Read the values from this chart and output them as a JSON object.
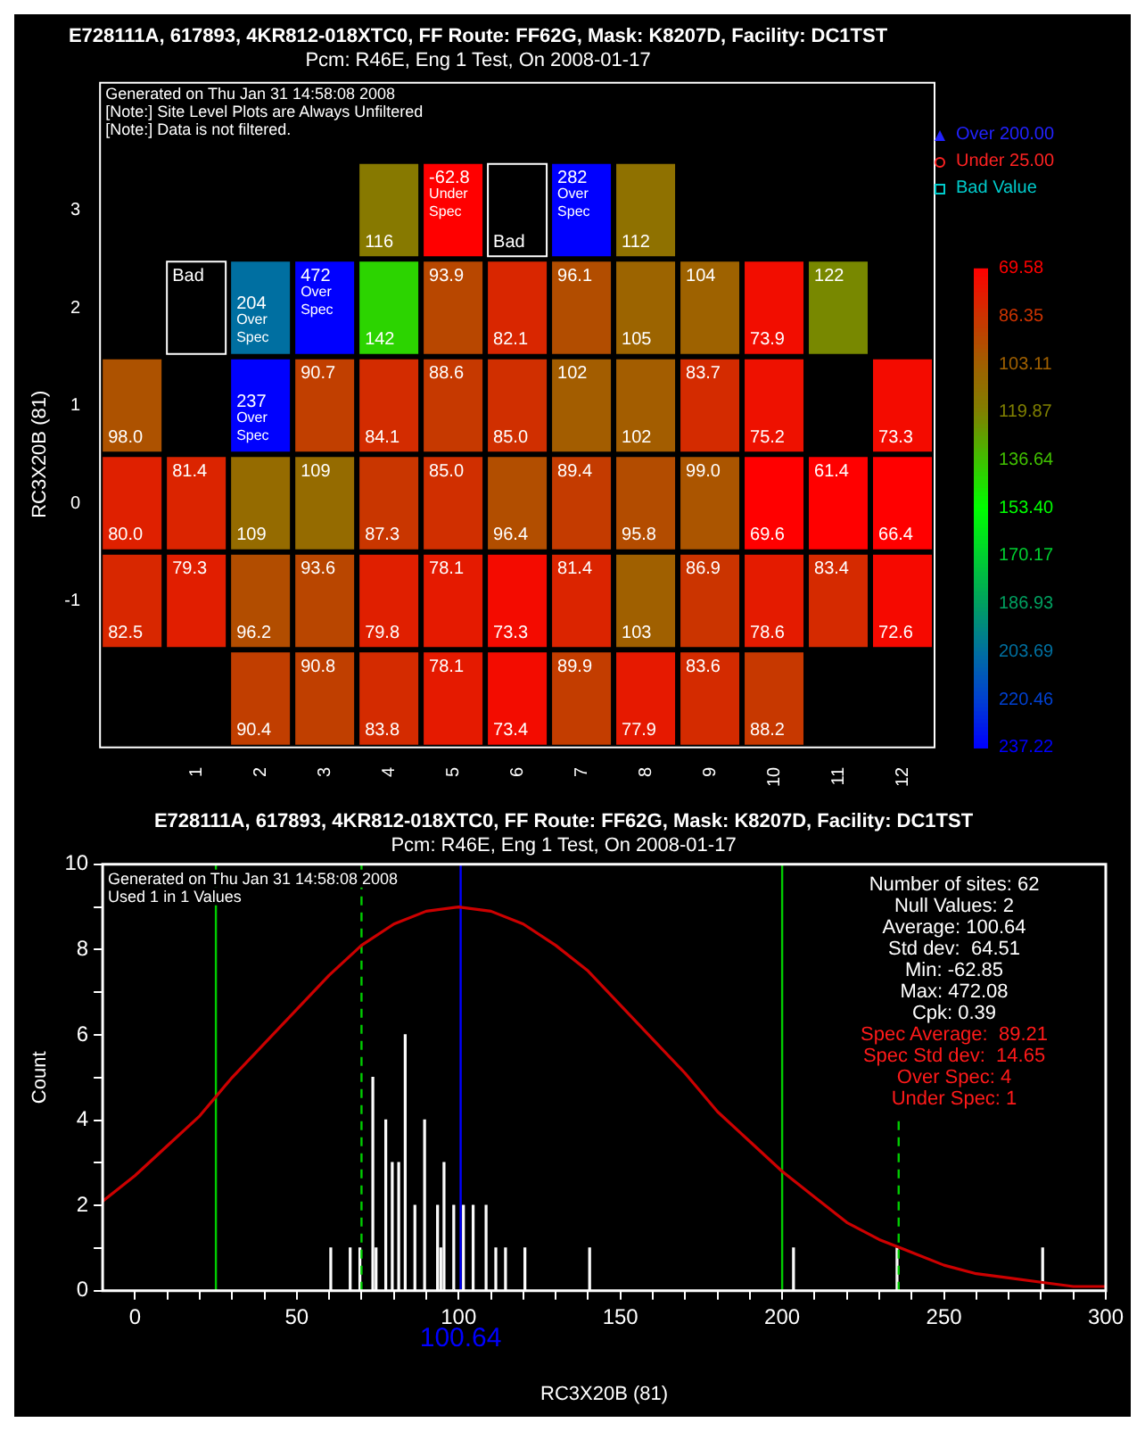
{
  "chart_data": [
    {
      "type": "heatmap",
      "title": "E728111A, 617893, 4KR812-018XTC0, FF Route: FF62G, Mask: K8207D, Facility: DC1TST",
      "subtitle": "Pcm: R46E, Eng 1 Test, On 2008-01-17",
      "ylabel": "RC3X20B (81)",
      "categories": [
        null,
        "1",
        "2",
        "3",
        "4",
        "5",
        "6",
        "7",
        "8",
        "9",
        "10",
        "11",
        "12"
      ],
      "y_categories": [
        "3",
        "2",
        "1",
        "0",
        "-1",
        null
      ],
      "cells": [
        [
          null,
          null,
          null,
          null,
          116,
          -62.8,
          null,
          282,
          112,
          null,
          null,
          null,
          null
        ],
        [
          null,
          null,
          204,
          472,
          142,
          93.9,
          82.1,
          96.1,
          105,
          104,
          73.9,
          122,
          null
        ],
        [
          98.0,
          null,
          237,
          90.7,
          84.1,
          88.6,
          85.0,
          102,
          102,
          83.7,
          75.2,
          null,
          73.3
        ],
        [
          80.0,
          81.4,
          109,
          109,
          87.3,
          85.0,
          96.4,
          89.4,
          95.8,
          99.0,
          69.6,
          61.4,
          66.4
        ],
        [
          82.5,
          79.3,
          96.2,
          93.6,
          79.8,
          78.1,
          73.3,
          81.4,
          103,
          86.9,
          78.6,
          83.4,
          72.6
        ],
        [
          null,
          null,
          90.4,
          90.8,
          83.8,
          78.1,
          73.4,
          89.9,
          77.9,
          83.6,
          88.2,
          null,
          null
        ]
      ],
      "cell_labels": [
        [
          null,
          null,
          null,
          null,
          "116",
          "-62.8\nUnder Spec",
          "Bad",
          "282\nOver Spec",
          "112",
          null,
          null,
          null,
          null
        ],
        [
          null,
          "Bad",
          "204\nOver Spec",
          "472\nOver Spec",
          "142",
          "93.9",
          "82.1",
          "96.1",
          "105",
          "104",
          "73.9",
          "122",
          null
        ],
        [
          "98.0",
          null,
          "237\nOver Spec",
          "90.7",
          "84.1",
          "88.6",
          "85.0",
          "102",
          "102",
          "83.7",
          "75.2",
          null,
          "73.3"
        ],
        [
          "80.0",
          "81.4",
          "109",
          "109",
          "87.3",
          "85.0",
          "96.4",
          "89.4",
          "95.8",
          "99.0",
          "69.6",
          "61.4",
          "66.4"
        ],
        [
          "82.5",
          "79.3",
          "96.2",
          "93.6",
          "79.8",
          "78.1",
          "73.3",
          "81.4",
          "103",
          "86.9",
          "78.6",
          "83.4",
          "72.6"
        ],
        [
          null,
          null,
          "90.4",
          "90.8",
          "83.8",
          "78.1",
          "73.4",
          "89.9",
          "77.9",
          "83.6",
          "88.2",
          null,
          null
        ]
      ],
      "clim": [
        69.58,
        237.22
      ],
      "cticks": [
        69.58,
        86.35,
        103.11,
        119.87,
        136.64,
        {
          "value": 153.4,
          "label": "153.40"
        },
        170.17,
        186.93,
        203.69,
        220.46,
        237.22
      ],
      "annotations": [
        "Generated on Thu Jan 31 14:58:08 2008",
        "[Note:] Site Level Plots are Always Unfiltered",
        "[Note:] Data is not filtered.",
        "Over 200.00",
        "Under 25.00",
        "Bad Value"
      ]
    },
    {
      "type": "histogram",
      "title": "E728111A, 617893, 4KR812-018XTC0, FF Route: FF62G, Mask: K8207D, Facility: DC1TST",
      "subtitle": "Pcm: R46E, Eng 1 Test, On 2008-01-17",
      "xlabel": "RC3X20B (81)",
      "ylabel": "Count",
      "color": "#ffffff",
      "bins": [
        60,
        61,
        66,
        67,
        69,
        70,
        73,
        74,
        75,
        77,
        78,
        79,
        80,
        81,
        82,
        83,
        84,
        86,
        87,
        89,
        90,
        93,
        94,
        95,
        96,
        98,
        99,
        101,
        102,
        104,
        105,
        108,
        109,
        111,
        112,
        114,
        115,
        120,
        121,
        140,
        141,
        203,
        204,
        235,
        236,
        280,
        281
      ],
      "values": [
        1,
        0,
        1,
        0,
        1,
        0,
        5,
        1,
        0,
        4,
        0,
        3,
        0,
        3,
        0,
        6,
        0,
        2,
        0,
        4,
        0,
        2,
        1,
        3,
        0,
        2,
        0,
        2,
        0,
        2,
        0,
        2,
        0,
        1,
        0,
        1,
        0,
        1,
        0,
        1,
        0,
        1,
        0,
        1,
        0,
        1
      ],
      "series": [
        {
          "type": "line",
          "color": "#cc0000",
          "x": [
            -10,
            0,
            10,
            20,
            30,
            40,
            50,
            60,
            70,
            80,
            90,
            100,
            110,
            120,
            130,
            140,
            150,
            160,
            170,
            180,
            190,
            200,
            210,
            220,
            230,
            240,
            250,
            260,
            270,
            280,
            290,
            300
          ],
          "values": [
            2.1,
            2.7,
            3.4,
            4.1,
            5.0,
            5.8,
            6.6,
            7.4,
            8.1,
            8.6,
            8.9,
            9.0,
            8.9,
            8.6,
            8.1,
            7.5,
            6.7,
            5.9,
            5.1,
            4.2,
            3.5,
            2.8,
            2.2,
            1.6,
            1.2,
            0.9,
            0.6,
            0.4,
            0.3,
            0.2,
            0.1,
            0.1
          ]
        }
      ],
      "xlim": [
        -10,
        300
      ],
      "xticks": [
        0,
        {
          "value": 10,
          "label": null
        },
        {
          "value": 20,
          "label": null
        },
        {
          "value": 30,
          "label": null
        },
        {
          "value": 40,
          "label": null
        },
        50,
        {
          "value": 60,
          "label": null
        },
        {
          "value": 70,
          "label": null
        },
        {
          "value": 80,
          "label": null
        },
        {
          "value": 90,
          "label": null
        },
        100,
        {
          "value": 110,
          "label": null
        },
        {
          "value": 120,
          "label": null
        },
        {
          "value": 130,
          "label": null
        },
        {
          "value": 140,
          "label": null
        },
        150,
        {
          "value": 160,
          "label": null
        },
        {
          "value": 170,
          "label": null
        },
        {
          "value": 180,
          "label": null
        },
        {
          "value": 190,
          "label": null
        },
        200,
        {
          "value": 210,
          "label": null
        },
        {
          "value": 220,
          "label": null
        },
        {
          "value": 230,
          "label": null
        },
        {
          "value": 240,
          "label": null
        },
        250,
        {
          "value": 260,
          "label": null
        },
        {
          "value": 270,
          "label": null
        },
        {
          "value": 280,
          "label": null
        },
        {
          "value": 290,
          "label": null
        },
        300
      ],
      "ylim": [
        0,
        10
      ],
      "yticks": [
        0,
        {
          "value": 1,
          "label": null
        },
        2,
        {
          "value": 3,
          "label": null
        },
        4,
        {
          "value": 5,
          "label": null
        },
        6,
        {
          "value": 7,
          "label": null
        },
        8,
        {
          "value": 9,
          "label": null
        },
        10
      ],
      "ref_lines": [
        {
          "axis": "x",
          "value": 25,
          "color": "#00cc00",
          "line_style": "solid"
        },
        {
          "axis": "x",
          "value": 70,
          "color": "#00cc00",
          "line_style": "dashed"
        },
        {
          "axis": "x",
          "value": 100.64,
          "label": "100.64",
          "color": "#0000ff",
          "line_style": "solid"
        },
        {
          "axis": "x",
          "value": 200,
          "color": "#00cc00",
          "line_style": "solid"
        },
        {
          "axis": "x",
          "value": 236,
          "color": "#00cc00",
          "line_style": "dashed"
        }
      ],
      "annotations": [
        "Generated on Thu Jan 31 14:58:08 2008",
        "Used 1 in 1 Values",
        "Number of sites: 62",
        "Null Values: 2",
        "Average: 100.64",
        "Std dev:  64.51",
        "Min: -62.85",
        "Max: 472.08",
        "Cpk: 0.39",
        "Spec Average:  89.21",
        "Spec Std dev:  14.65",
        "Over Spec: 4",
        "Under Spec: 1"
      ]
    }
  ]
}
